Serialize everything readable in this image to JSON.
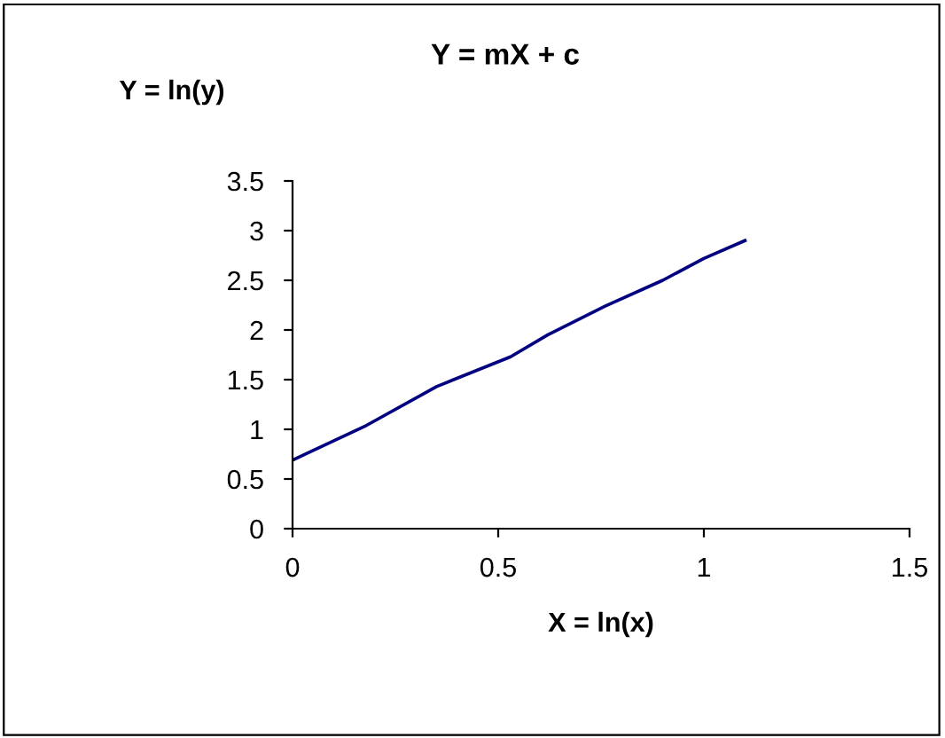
{
  "chart_data": {
    "type": "line",
    "title": "Y = mX + c",
    "xlabel": "X = ln(x)",
    "ylabel": "Y = ln(y)",
    "series": [
      {
        "color": "#000080",
        "x": [
          0,
          0.18,
          0.35,
          0.53,
          0.62,
          0.76,
          0.9,
          1.0,
          1.1
        ],
        "values": [
          0.69,
          1.04,
          1.43,
          1.73,
          1.95,
          2.24,
          2.5,
          2.72,
          2.9
        ]
      }
    ],
    "xlim": [
      0,
      1.5
    ],
    "xticks": [
      0,
      0.5,
      1,
      1.5
    ],
    "ylim": [
      0,
      3.5
    ],
    "yticks": [
      0,
      0.5,
      1,
      1.5,
      2,
      2.5,
      3,
      3.5
    ],
    "grid": false,
    "legend": false,
    "marker": "none",
    "line_style": "solid"
  }
}
